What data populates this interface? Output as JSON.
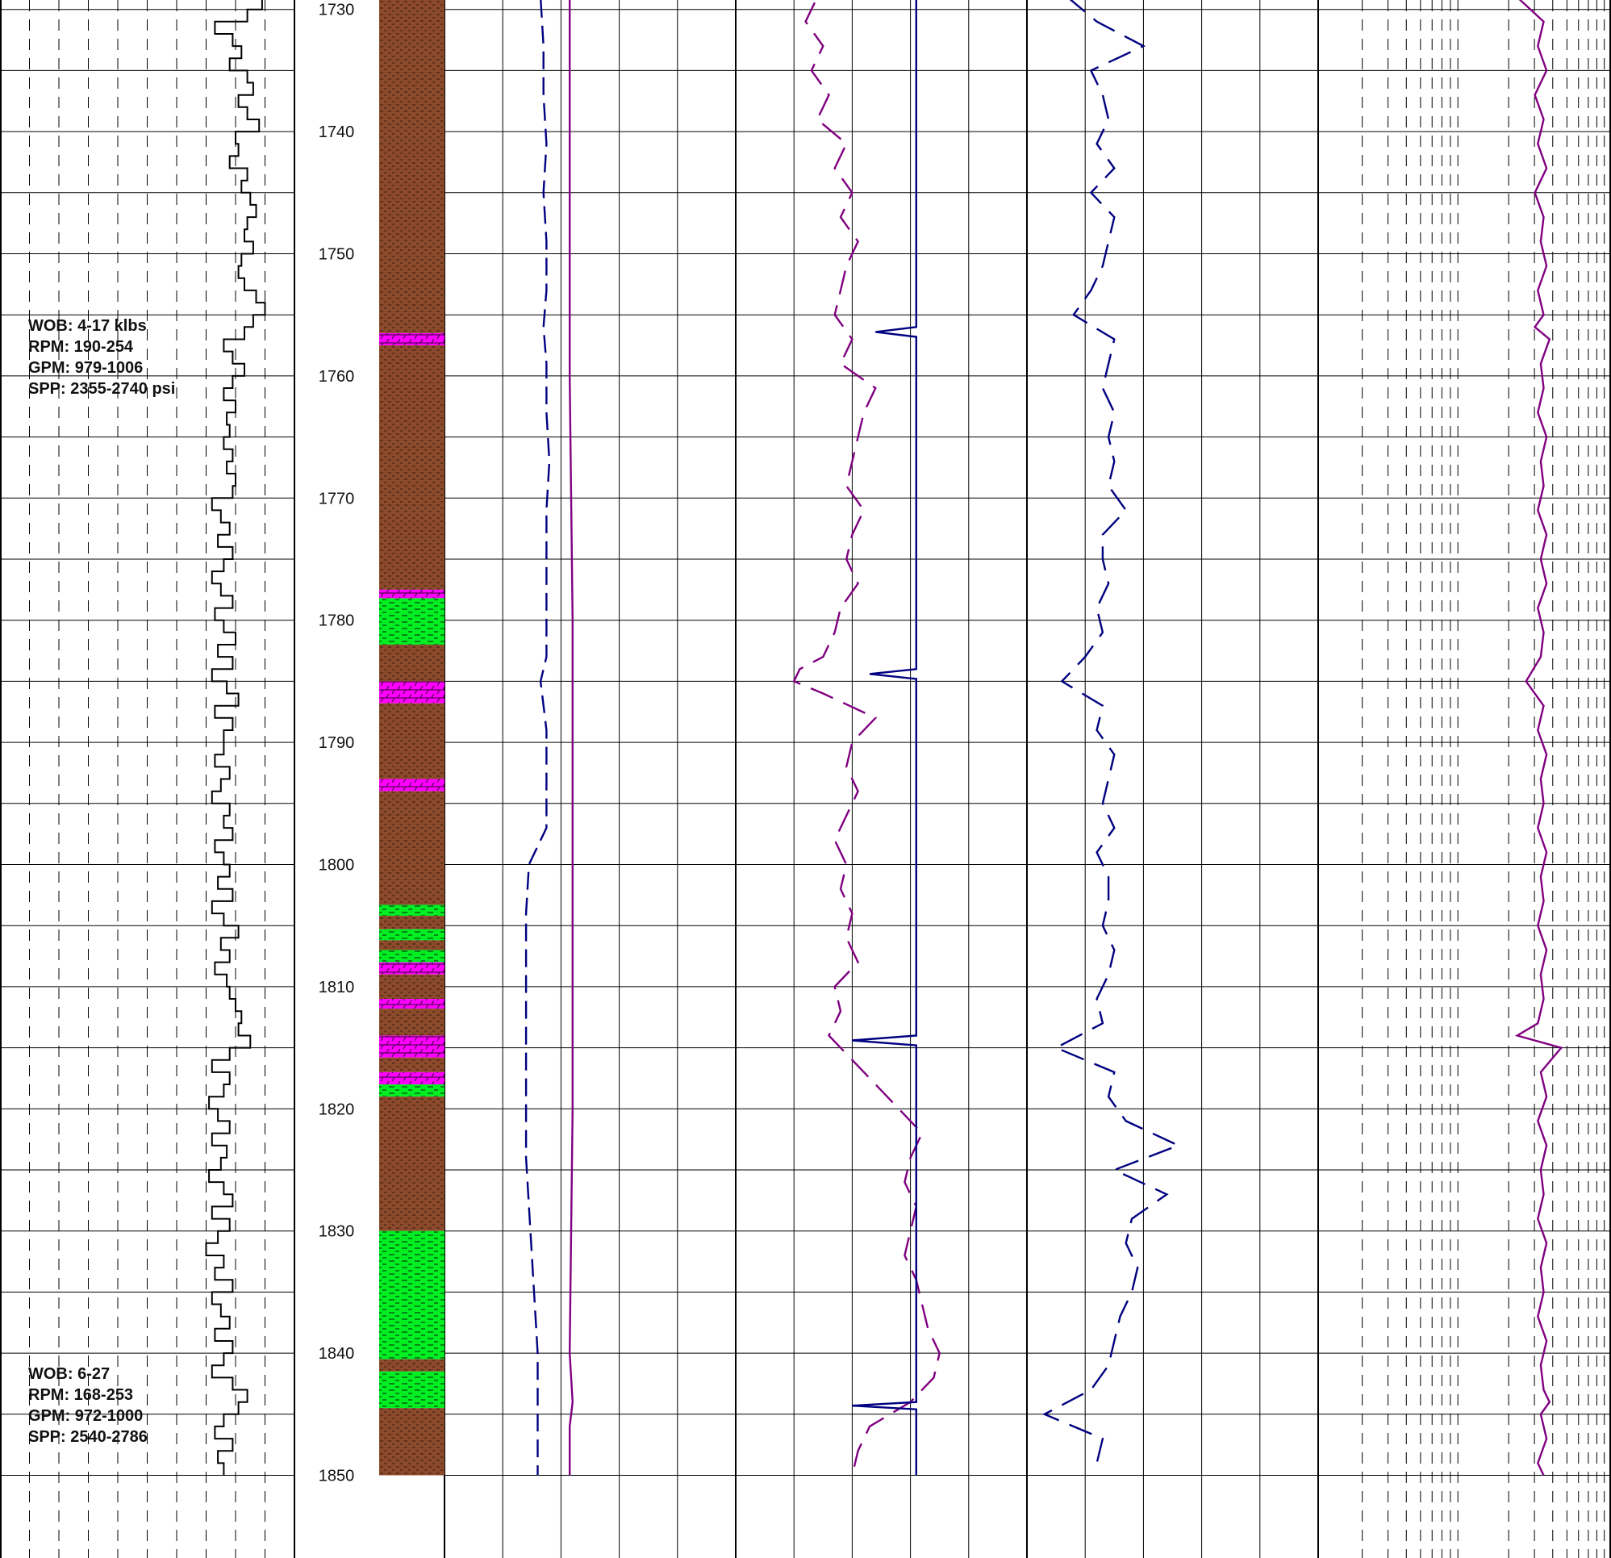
{
  "chart_data": {
    "type": "line",
    "title": "",
    "depth_axis": {
      "label": "",
      "range": [
        1725,
        1850
      ],
      "tick_labels": [
        "1730",
        "1740",
        "1750",
        "1760",
        "1770",
        "1780",
        "1790",
        "1800",
        "1810",
        "1820",
        "1830",
        "1840",
        "1850"
      ]
    },
    "drilling_notes": [
      {
        "depth_range": [
          1725,
          1815
        ],
        "lines": [
          "WOB: 4-17 klbs",
          "RPM: 190-254",
          "GPM: 979-1006",
          "SPP: 2355-2740 psi"
        ]
      },
      {
        "depth_range": [
          1815,
          1850
        ],
        "lines": [
          "WOB: 6-27",
          "RPM: 168-253",
          "GPM: 972-1000",
          "SPP: 2540-2786"
        ]
      }
    ],
    "lithology": {
      "legend": {
        "brown": "#8B4A2B",
        "green": "#00EE22",
        "magenta": "#FF00FF"
      },
      "intervals": [
        {
          "top": 1725,
          "base": 1756.5,
          "type": "brown"
        },
        {
          "top": 1756.5,
          "base": 1757.5,
          "type": "magenta"
        },
        {
          "top": 1757.5,
          "base": 1777.5,
          "type": "brown"
        },
        {
          "top": 1777.5,
          "base": 1778.2,
          "type": "magenta"
        },
        {
          "top": 1778.2,
          "base": 1782.0,
          "type": "green"
        },
        {
          "top": 1782.0,
          "base": 1785.0,
          "type": "brown"
        },
        {
          "top": 1785.0,
          "base": 1786.8,
          "type": "magenta"
        },
        {
          "top": 1786.8,
          "base": 1793.0,
          "type": "brown"
        },
        {
          "top": 1793.0,
          "base": 1794.0,
          "type": "magenta"
        },
        {
          "top": 1794.0,
          "base": 1803.3,
          "type": "brown"
        },
        {
          "top": 1803.3,
          "base": 1804.2,
          "type": "green"
        },
        {
          "top": 1804.2,
          "base": 1805.3,
          "type": "brown"
        },
        {
          "top": 1805.3,
          "base": 1806.2,
          "type": "green"
        },
        {
          "top": 1806.2,
          "base": 1807.0,
          "type": "brown"
        },
        {
          "top": 1807.0,
          "base": 1808.0,
          "type": "green"
        },
        {
          "top": 1808.0,
          "base": 1809.0,
          "type": "magenta"
        },
        {
          "top": 1809.0,
          "base": 1811.0,
          "type": "brown"
        },
        {
          "top": 1811.0,
          "base": 1811.8,
          "type": "magenta"
        },
        {
          "top": 1811.8,
          "base": 1814.0,
          "type": "brown"
        },
        {
          "top": 1814.0,
          "base": 1815.8,
          "type": "magenta"
        },
        {
          "top": 1815.8,
          "base": 1817.0,
          "type": "brown"
        },
        {
          "top": 1817.0,
          "base": 1818.0,
          "type": "magenta"
        },
        {
          "top": 1818.0,
          "base": 1819.0,
          "type": "green"
        },
        {
          "top": 1819.0,
          "base": 1830.0,
          "type": "brown"
        },
        {
          "top": 1830.0,
          "base": 1840.5,
          "type": "green"
        },
        {
          "top": 1840.5,
          "base": 1841.5,
          "type": "brown"
        },
        {
          "top": 1841.5,
          "base": 1844.5,
          "type": "green"
        },
        {
          "top": 1844.5,
          "base": 1850,
          "type": "brown"
        }
      ]
    },
    "series": [
      {
        "track": 1,
        "color": "#000000",
        "style": "step",
        "scale": [
          0,
          10
        ],
        "depth": [
          1725,
          1726,
          1727,
          1728,
          1729,
          1730,
          1731,
          1732,
          1733,
          1734,
          1735,
          1736,
          1737,
          1738,
          1739,
          1740,
          1741,
          1742,
          1743,
          1744,
          1745,
          1746,
          1747,
          1748,
          1749,
          1750,
          1751,
          1752,
          1753,
          1754,
          1755,
          1756,
          1757,
          1758,
          1759,
          1760,
          1761,
          1762,
          1763,
          1764,
          1765,
          1766,
          1767,
          1768,
          1769,
          1770,
          1771,
          1772,
          1773,
          1774,
          1775,
          1776,
          1777,
          1778,
          1779,
          1780,
          1781,
          1782,
          1783,
          1784,
          1785,
          1786,
          1787,
          1788,
          1789,
          1790,
          1791,
          1792,
          1793,
          1794,
          1795,
          1796,
          1797,
          1798,
          1799,
          1800,
          1801,
          1802,
          1803,
          1804,
          1805,
          1806,
          1807,
          1808,
          1809,
          1810,
          1811,
          1812,
          1813,
          1814,
          1815,
          1816,
          1817,
          1818,
          1819,
          1820,
          1821,
          1822,
          1823,
          1824,
          1825,
          1826,
          1827,
          1828,
          1829,
          1830,
          1831,
          1832,
          1833,
          1834,
          1835,
          1836,
          1837,
          1838,
          1839,
          1840,
          1841,
          1842,
          1843,
          1844,
          1845,
          1846,
          1847,
          1848,
          1849
        ],
        "values": [
          8.2,
          8.9,
          9.3,
          8.3,
          8.9,
          8.4,
          7.3,
          7.9,
          8.2,
          7.8,
          8.4,
          8.6,
          8.1,
          8.4,
          8.8,
          8.0,
          8.1,
          7.8,
          8.4,
          8.2,
          8.5,
          8.7,
          8.4,
          8.3,
          8.6,
          8.2,
          8.1,
          8.3,
          8.7,
          9.0,
          8.6,
          8.3,
          7.6,
          7.9,
          8.3,
          7.9,
          7.6,
          8.0,
          7.7,
          7.8,
          7.6,
          7.9,
          7.7,
          8.0,
          7.9,
          7.2,
          7.5,
          7.8,
          7.4,
          7.9,
          7.6,
          7.2,
          7.5,
          7.9,
          7.3,
          7.6,
          8.0,
          7.4,
          7.9,
          7.2,
          7.7,
          8.1,
          7.3,
          7.9,
          7.6,
          7.6,
          7.3,
          7.8,
          7.5,
          7.2,
          7.8,
          7.6,
          7.9,
          7.3,
          7.6,
          7.8,
          7.4,
          7.9,
          7.2,
          7.6,
          8.1,
          7.5,
          7.8,
          7.3,
          7.7,
          7.8,
          8.0,
          8.2,
          8.1,
          8.5,
          7.8,
          7.2,
          7.8,
          7.6,
          7.1,
          7.4,
          7.8,
          7.2,
          7.7,
          7.5,
          7.1,
          7.6,
          7.9,
          7.2,
          7.8,
          7.4,
          7.0,
          7.6,
          7.3,
          7.9,
          7.2,
          7.5,
          7.8,
          7.3,
          7.9,
          7.6,
          7.2,
          7.9,
          8.4,
          8.1,
          7.6,
          7.3,
          7.9,
          7.4,
          7.6
        ]
      },
      {
        "track": 3,
        "color": "#000080",
        "style": "dashed",
        "scale": [
          0,
          100
        ],
        "depth": [
          1725,
          1729,
          1733,
          1737,
          1741,
          1745,
          1749,
          1753,
          1756,
          1759,
          1763,
          1767,
          1771,
          1775,
          1779,
          1783,
          1785,
          1789,
          1793,
          1797,
          1800,
          1804,
          1808,
          1812,
          1816,
          1820,
          1824,
          1828,
          1832,
          1836,
          1840,
          1844,
          1848,
          1850
        ],
        "values": [
          34,
          33,
          34,
          34,
          35,
          34,
          35,
          35,
          34,
          35,
          35,
          36,
          35,
          35,
          35,
          35,
          33,
          35,
          35,
          35,
          29,
          28,
          28,
          28,
          28,
          28,
          28,
          29,
          30,
          31,
          32,
          32,
          32,
          32
        ]
      },
      {
        "track": 3,
        "color": "#800080",
        "style": "solid",
        "scale": [
          0,
          100
        ],
        "depth": [
          1725,
          1740,
          1760,
          1780,
          1800,
          1820,
          1840,
          1844,
          1846,
          1850
        ],
        "values": [
          43,
          43,
          43,
          44,
          44,
          44,
          43,
          44,
          43,
          43
        ]
      },
      {
        "track": 4,
        "color": "#800080",
        "style": "broken",
        "scale": [
          0,
          100
        ],
        "depth": [
          1725,
          1727,
          1729,
          1731,
          1733,
          1735,
          1737,
          1739,
          1741,
          1743,
          1745,
          1747,
          1749,
          1751,
          1753,
          1755,
          1757,
          1759,
          1761,
          1763,
          1765,
          1767,
          1769,
          1771,
          1773,
          1775,
          1777,
          1779,
          1781,
          1783,
          1784,
          1785,
          1786,
          1788,
          1790,
          1792,
          1794,
          1796,
          1798,
          1800,
          1802,
          1804,
          1806,
          1808,
          1810,
          1812,
          1814,
          1816,
          1818,
          1820,
          1822,
          1824,
          1826,
          1828,
          1830,
          1832,
          1834,
          1836,
          1838,
          1840,
          1842,
          1844,
          1846,
          1848,
          1850
        ],
        "values": [
          22,
          18,
          28,
          24,
          30,
          26,
          32,
          28,
          38,
          34,
          40,
          36,
          42,
          38,
          36,
          34,
          40,
          36,
          48,
          44,
          42,
          40,
          38,
          44,
          40,
          38,
          42,
          36,
          34,
          30,
          22,
          20,
          30,
          48,
          40,
          38,
          42,
          38,
          34,
          38,
          36,
          40,
          38,
          42,
          34,
          36,
          32,
          40,
          48,
          56,
          64,
          60,
          58,
          62,
          60,
          58,
          62,
          64,
          66,
          70,
          68,
          60,
          46,
          42,
          40
        ]
      },
      {
        "track": 4,
        "color": "#000080",
        "style": "solid",
        "scale": [
          0,
          100
        ],
        "depth": [
          1725,
          1728,
          1728.3,
          1728.6,
          1740,
          1756,
          1756.4,
          1756.8,
          1770,
          1784,
          1784.4,
          1784.8,
          1800,
          1814,
          1814.4,
          1814.8,
          1830,
          1844,
          1844.3,
          1844.6,
          1850
        ],
        "values": [
          62,
          62,
          50,
          62,
          62,
          62,
          48,
          62,
          62,
          62,
          46,
          62,
          62,
          62,
          40,
          62,
          62,
          62,
          40,
          62,
          62
        ]
      },
      {
        "track": 5,
        "color": "#000080",
        "style": "broken",
        "scale": [
          0,
          100
        ],
        "depth": [
          1725,
          1727,
          1729,
          1731,
          1733,
          1735,
          1737,
          1739,
          1741,
          1743,
          1745,
          1747,
          1749,
          1751,
          1753,
          1755,
          1757,
          1759,
          1761,
          1763,
          1765,
          1767,
          1769,
          1771,
          1773,
          1775,
          1777,
          1779,
          1781,
          1783,
          1785,
          1787,
          1789,
          1791,
          1793,
          1795,
          1797,
          1799,
          1801,
          1803,
          1805,
          1807,
          1809,
          1811,
          1813,
          1815,
          1817,
          1819,
          1821,
          1823,
          1825,
          1827,
          1829,
          1831,
          1833,
          1835,
          1837,
          1839,
          1841,
          1843,
          1845,
          1847,
          1849
        ],
        "values": [
          30,
          28,
          14,
          24,
          40,
          22,
          26,
          28,
          24,
          30,
          22,
          30,
          28,
          26,
          22,
          16,
          30,
          28,
          26,
          30,
          28,
          30,
          28,
          34,
          26,
          26,
          28,
          24,
          26,
          20,
          12,
          26,
          24,
          30,
          28,
          26,
          30,
          24,
          28,
          28,
          26,
          30,
          28,
          24,
          26,
          10,
          30,
          28,
          34,
          52,
          30,
          48,
          36,
          34,
          38,
          36,
          32,
          30,
          28,
          22,
          6,
          26,
          24
        ]
      },
      {
        "track": 6,
        "color": "#800080",
        "style": "solid",
        "scale": [
          0,
          100
        ],
        "depth": [
          1725,
          1727,
          1729,
          1731,
          1733,
          1735,
          1737,
          1739,
          1741,
          1743,
          1745,
          1747,
          1749,
          1751,
          1753,
          1755,
          1756,
          1757,
          1759,
          1761,
          1763,
          1765,
          1767,
          1769,
          1771,
          1773,
          1775,
          1777,
          1779,
          1781,
          1783,
          1785,
          1787,
          1789,
          1791,
          1793,
          1795,
          1797,
          1799,
          1801,
          1803,
          1805,
          1807,
          1809,
          1811,
          1813,
          1814,
          1815,
          1817,
          1819,
          1821,
          1823,
          1825,
          1827,
          1829,
          1831,
          1833,
          1835,
          1837,
          1839,
          1841,
          1843,
          1844,
          1845,
          1847,
          1849,
          1850
        ],
        "values": [
          75,
          76,
          68,
          77,
          75,
          78,
          74,
          77,
          75,
          78,
          74,
          77,
          76,
          78,
          75,
          77,
          74,
          79,
          76,
          77,
          75,
          78,
          76,
          77,
          75,
          78,
          76,
          78,
          75,
          77,
          76,
          71,
          77,
          75,
          78,
          76,
          77,
          75,
          78,
          76,
          77,
          75,
          78,
          76,
          77,
          75,
          68,
          83,
          76,
          78,
          75,
          78,
          76,
          77,
          75,
          78,
          76,
          77,
          75,
          78,
          76,
          77,
          79,
          76,
          78,
          75,
          77
        ]
      }
    ]
  }
}
